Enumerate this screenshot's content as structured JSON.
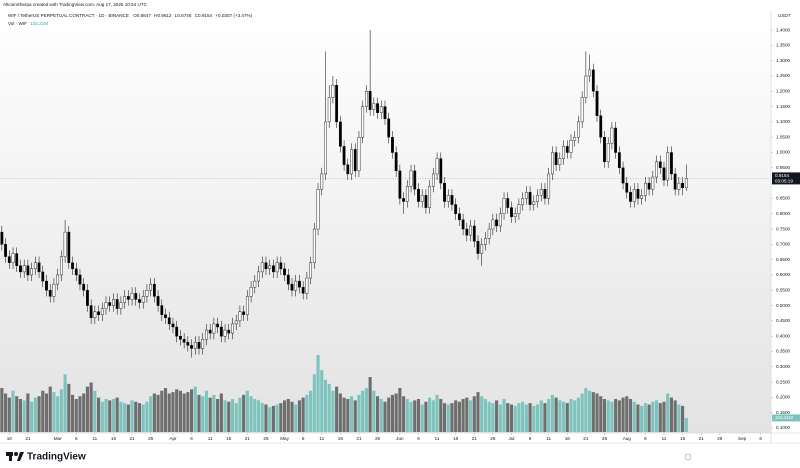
{
  "header": {
    "author_line": "AltcoinSherpa created with TradingView.com, Aug 17, 2025 10:54 UTC",
    "symbol": "WIF / TetherUS PERPETUAL CONTRACT · 1D · BINANCE",
    "ohlc_labels": [
      "O",
      "H",
      "L",
      "C"
    ],
    "change": "+0.0307 (+3.47%)",
    "volume_title": "Vol · WIF",
    "currency": "USDT",
    "countdown": "03:05:19",
    "brand": "TradingView"
  },
  "chart_data": {
    "type": "candlestick",
    "xlim": [
      -0.5,
      206.5
    ],
    "xticks": [
      {
        "value": 2,
        "label": "16"
      },
      {
        "value": 7,
        "label": "21"
      },
      {
        "value": 15,
        "label": "Mar"
      },
      {
        "value": 20,
        "label": "6"
      },
      {
        "value": 25,
        "label": "11"
      },
      {
        "value": 30,
        "label": "16"
      },
      {
        "value": 35,
        "label": "21"
      },
      {
        "value": 40,
        "label": "26"
      },
      {
        "value": 46,
        "label": "Apr"
      },
      {
        "value": 51,
        "label": "6"
      },
      {
        "value": 56,
        "label": "11"
      },
      {
        "value": 61,
        "label": "16"
      },
      {
        "value": 66,
        "label": "21"
      },
      {
        "value": 71,
        "label": "26"
      },
      {
        "value": 76,
        "label": "May"
      },
      {
        "value": 81,
        "label": "6"
      },
      {
        "value": 86,
        "label": "11"
      },
      {
        "value": 91,
        "label": "16"
      },
      {
        "value": 96,
        "label": "21"
      },
      {
        "value": 101,
        "label": "26"
      },
      {
        "value": 107,
        "label": "Jun"
      },
      {
        "value": 112,
        "label": "6"
      },
      {
        "value": 117,
        "label": "11"
      },
      {
        "value": 122,
        "label": "16"
      },
      {
        "value": 127,
        "label": "21"
      },
      {
        "value": 132,
        "label": "26"
      },
      {
        "value": 137,
        "label": "Jul"
      },
      {
        "value": 142,
        "label": "6"
      },
      {
        "value": 147,
        "label": "11"
      },
      {
        "value": 152,
        "label": "16"
      },
      {
        "value": 157,
        "label": "21"
      },
      {
        "value": 162,
        "label": "26"
      },
      {
        "value": 168,
        "label": "Aug"
      },
      {
        "value": 173,
        "label": "6"
      },
      {
        "value": 178,
        "label": "11"
      },
      {
        "value": 183,
        "label": "16"
      },
      {
        "value": 188,
        "label": "21"
      },
      {
        "value": 193,
        "label": "26"
      },
      {
        "value": 199,
        "label": "Sep"
      },
      {
        "value": 204,
        "label": "6"
      }
    ],
    "ylim": [
      0.087,
      1.459
    ],
    "yticks": [
      {
        "value": 1.4,
        "label": "1.4000"
      },
      {
        "value": 1.35,
        "label": "1.3500"
      },
      {
        "value": 1.3,
        "label": "1.3000"
      },
      {
        "value": 1.25,
        "label": "1.2500"
      },
      {
        "value": 1.2,
        "label": "1.2000"
      },
      {
        "value": 1.15,
        "label": "1.1500"
      },
      {
        "value": 1.1,
        "label": "1.1000"
      },
      {
        "value": 1.05,
        "label": "1.0500"
      },
      {
        "value": 1.0,
        "label": "1.0000"
      },
      {
        "value": 0.95,
        "label": "0.9500"
      },
      {
        "value": 0.85,
        "label": "0.8500"
      },
      {
        "value": 0.8,
        "label": "0.8000"
      },
      {
        "value": 0.75,
        "label": "0.7500"
      },
      {
        "value": 0.7,
        "label": "0.7000"
      },
      {
        "value": 0.65,
        "label": "0.6500"
      },
      {
        "value": 0.6,
        "label": "0.6000"
      },
      {
        "value": 0.55,
        "label": "0.5500"
      },
      {
        "value": 0.5,
        "label": "0.5000"
      },
      {
        "value": 0.45,
        "label": "0.4500"
      },
      {
        "value": 0.4,
        "label": "0.4000"
      },
      {
        "value": 0.35,
        "label": "0.3500"
      },
      {
        "value": 0.3,
        "label": "0.3000"
      },
      {
        "value": 0.25,
        "label": "0.2500"
      },
      {
        "value": 0.2,
        "label": "0.2000"
      },
      {
        "value": 0.15,
        "label": "0.1500"
      },
      {
        "value": 0.1,
        "label": "0.1000"
      }
    ],
    "grid": false,
    "up_color": "#ffffff",
    "down_color": "#000000",
    "outline_color": "#000000",
    "volume_up_color": "#7cc4bd",
    "volume_down_color": "#6e6e6e",
    "open": [
      0.74,
      0.7,
      0.66,
      0.64,
      0.67,
      0.63,
      0.61,
      0.63,
      0.6,
      0.62,
      0.64,
      0.61,
      0.58,
      0.55,
      0.53,
      0.57,
      0.6,
      0.66,
      0.74,
      0.64,
      0.62,
      0.6,
      0.57,
      0.55,
      0.5,
      0.46,
      0.48,
      0.47,
      0.49,
      0.51,
      0.5,
      0.52,
      0.49,
      0.51,
      0.53,
      0.52,
      0.54,
      0.52,
      0.51,
      0.53,
      0.55,
      0.57,
      0.53,
      0.5,
      0.47,
      0.46,
      0.44,
      0.43,
      0.4,
      0.39,
      0.38,
      0.37,
      0.36,
      0.38,
      0.36,
      0.39,
      0.42,
      0.41,
      0.44,
      0.43,
      0.4,
      0.42,
      0.41,
      0.44,
      0.45,
      0.48,
      0.47,
      0.53,
      0.56,
      0.58,
      0.61,
      0.64,
      0.62,
      0.63,
      0.61,
      0.64,
      0.62,
      0.6,
      0.57,
      0.55,
      0.58,
      0.56,
      0.54,
      0.59,
      0.64,
      0.75,
      0.88,
      0.93,
      1.1,
      1.18,
      1.22,
      1.1,
      1.02,
      0.96,
      0.93,
      1.01,
      0.94,
      1.05,
      1.15,
      1.2,
      1.14,
      1.16,
      1.13,
      1.15,
      1.11,
      1.05,
      1.0,
      0.94,
      0.85,
      0.84,
      0.89,
      0.94,
      0.88,
      0.84,
      0.86,
      0.82,
      0.89,
      0.93,
      0.98,
      0.9,
      0.84,
      0.86,
      0.83,
      0.8,
      0.78,
      0.75,
      0.73,
      0.76,
      0.71,
      0.67,
      0.7,
      0.72,
      0.75,
      0.78,
      0.76,
      0.8,
      0.85,
      0.82,
      0.79,
      0.8,
      0.83,
      0.85,
      0.87,
      0.83,
      0.84,
      0.86,
      0.88,
      0.85,
      0.93,
      1.0,
      0.96,
      0.98,
      1.02,
      1.0,
      1.04,
      1.05,
      1.1,
      1.18,
      1.25,
      1.27,
      1.2,
      1.12,
      1.05,
      0.97,
      1.03,
      1.08,
      1.0,
      0.95,
      0.9,
      0.87,
      0.84,
      0.88,
      0.85,
      0.86,
      0.9,
      0.88,
      0.92,
      0.97,
      0.95,
      0.91,
      1.0,
      0.93,
      0.88,
      0.9,
      0.8847
    ],
    "high": [
      0.76,
      0.72,
      0.68,
      0.69,
      0.69,
      0.65,
      0.65,
      0.65,
      0.64,
      0.66,
      0.66,
      0.63,
      0.6,
      0.57,
      0.59,
      0.62,
      0.68,
      0.78,
      0.76,
      0.66,
      0.64,
      0.62,
      0.59,
      0.57,
      0.52,
      0.5,
      0.5,
      0.51,
      0.53,
      0.53,
      0.54,
      0.54,
      0.53,
      0.55,
      0.55,
      0.56,
      0.56,
      0.54,
      0.55,
      0.57,
      0.59,
      0.59,
      0.55,
      0.52,
      0.49,
      0.48,
      0.46,
      0.45,
      0.42,
      0.41,
      0.4,
      0.39,
      0.4,
      0.4,
      0.41,
      0.44,
      0.44,
      0.46,
      0.46,
      0.45,
      0.44,
      0.44,
      0.46,
      0.47,
      0.5,
      0.5,
      0.55,
      0.58,
      0.6,
      0.63,
      0.66,
      0.66,
      0.65,
      0.65,
      0.66,
      0.66,
      0.64,
      0.62,
      0.59,
      0.6,
      0.6,
      0.58,
      0.61,
      0.66,
      0.77,
      0.9,
      0.95,
      1.33,
      1.22,
      1.25,
      1.24,
      1.12,
      1.04,
      0.98,
      1.03,
      1.03,
      1.07,
      1.17,
      1.22,
      1.4,
      1.18,
      1.18,
      1.17,
      1.17,
      1.13,
      1.07,
      1.02,
      0.96,
      0.87,
      0.91,
      0.96,
      0.96,
      0.9,
      0.88,
      0.88,
      0.91,
      0.95,
      1.0,
      1.0,
      0.92,
      0.88,
      0.88,
      0.85,
      0.82,
      0.8,
      0.77,
      0.78,
      0.78,
      0.73,
      0.72,
      0.74,
      0.77,
      0.8,
      0.8,
      0.82,
      0.87,
      0.87,
      0.84,
      0.82,
      0.85,
      0.87,
      0.89,
      0.89,
      0.86,
      0.88,
      0.9,
      0.9,
      0.95,
      1.02,
      1.02,
      1.0,
      1.04,
      1.04,
      1.06,
      1.07,
      1.12,
      1.2,
      1.33,
      1.32,
      1.29,
      1.22,
      1.14,
      1.07,
      1.05,
      1.1,
      1.1,
      1.02,
      0.97,
      0.92,
      0.89,
      0.9,
      0.9,
      0.88,
      0.92,
      0.92,
      0.94,
      0.99,
      0.99,
      0.97,
      1.02,
      1.02,
      0.95,
      0.92,
      0.92,
      0.9612
    ],
    "low": [
      0.68,
      0.64,
      0.62,
      0.62,
      0.61,
      0.59,
      0.59,
      0.58,
      0.58,
      0.6,
      0.59,
      0.56,
      0.53,
      0.51,
      0.51,
      0.55,
      0.58,
      0.64,
      0.62,
      0.6,
      0.58,
      0.55,
      0.53,
      0.48,
      0.44,
      0.44,
      0.45,
      0.45,
      0.47,
      0.48,
      0.48,
      0.47,
      0.47,
      0.49,
      0.5,
      0.5,
      0.5,
      0.49,
      0.49,
      0.51,
      0.53,
      0.51,
      0.48,
      0.45,
      0.44,
      0.42,
      0.41,
      0.38,
      0.37,
      0.36,
      0.35,
      0.33,
      0.34,
      0.34,
      0.34,
      0.37,
      0.39,
      0.39,
      0.41,
      0.38,
      0.38,
      0.39,
      0.39,
      0.42,
      0.43,
      0.45,
      0.45,
      0.51,
      0.54,
      0.56,
      0.59,
      0.6,
      0.6,
      0.59,
      0.59,
      0.6,
      0.58,
      0.55,
      0.53,
      0.53,
      0.54,
      0.52,
      0.52,
      0.57,
      0.62,
      0.73,
      0.86,
      0.91,
      1.08,
      1.16,
      1.08,
      1.0,
      0.94,
      0.91,
      0.91,
      0.92,
      0.92,
      1.03,
      1.13,
      1.12,
      1.12,
      1.11,
      1.11,
      1.09,
      1.03,
      0.98,
      0.92,
      0.83,
      0.8,
      0.82,
      0.87,
      0.86,
      0.82,
      0.82,
      0.8,
      0.8,
      0.87,
      0.91,
      0.88,
      0.82,
      0.82,
      0.81,
      0.78,
      0.76,
      0.73,
      0.71,
      0.71,
      0.69,
      0.65,
      0.63,
      0.68,
      0.7,
      0.73,
      0.74,
      0.74,
      0.78,
      0.8,
      0.77,
      0.77,
      0.78,
      0.81,
      0.83,
      0.81,
      0.81,
      0.82,
      0.84,
      0.83,
      0.83,
      0.91,
      0.94,
      0.94,
      0.96,
      0.98,
      0.98,
      1.02,
      1.03,
      1.08,
      1.16,
      1.23,
      1.18,
      1.1,
      1.03,
      0.95,
      0.95,
      1.01,
      0.98,
      0.93,
      0.88,
      0.85,
      0.82,
      0.82,
      0.83,
      0.83,
      0.84,
      0.86,
      0.86,
      0.9,
      0.93,
      0.89,
      0.89,
      0.91,
      0.86,
      0.86,
      0.86,
      0.8746
    ],
    "close": [
      0.7,
      0.66,
      0.64,
      0.67,
      0.63,
      0.61,
      0.63,
      0.6,
      0.62,
      0.64,
      0.61,
      0.58,
      0.55,
      0.53,
      0.57,
      0.6,
      0.66,
      0.74,
      0.64,
      0.62,
      0.6,
      0.57,
      0.55,
      0.5,
      0.46,
      0.48,
      0.47,
      0.49,
      0.51,
      0.5,
      0.52,
      0.49,
      0.51,
      0.53,
      0.52,
      0.54,
      0.52,
      0.51,
      0.53,
      0.55,
      0.57,
      0.53,
      0.5,
      0.47,
      0.46,
      0.44,
      0.43,
      0.4,
      0.39,
      0.38,
      0.37,
      0.36,
      0.38,
      0.36,
      0.39,
      0.42,
      0.41,
      0.44,
      0.43,
      0.4,
      0.42,
      0.41,
      0.44,
      0.45,
      0.48,
      0.47,
      0.53,
      0.56,
      0.58,
      0.61,
      0.64,
      0.62,
      0.63,
      0.61,
      0.64,
      0.62,
      0.6,
      0.57,
      0.55,
      0.58,
      0.56,
      0.54,
      0.59,
      0.64,
      0.75,
      0.88,
      0.93,
      1.1,
      1.18,
      1.22,
      1.1,
      1.02,
      0.96,
      0.93,
      1.01,
      0.94,
      1.05,
      1.15,
      1.2,
      1.14,
      1.16,
      1.13,
      1.15,
      1.11,
      1.05,
      1.0,
      0.94,
      0.85,
      0.84,
      0.89,
      0.94,
      0.88,
      0.84,
      0.86,
      0.82,
      0.89,
      0.93,
      0.98,
      0.9,
      0.84,
      0.86,
      0.83,
      0.8,
      0.78,
      0.75,
      0.73,
      0.76,
      0.71,
      0.67,
      0.7,
      0.72,
      0.75,
      0.78,
      0.76,
      0.8,
      0.85,
      0.82,
      0.79,
      0.8,
      0.83,
      0.85,
      0.87,
      0.83,
      0.84,
      0.86,
      0.88,
      0.85,
      0.93,
      1.0,
      0.96,
      0.98,
      1.02,
      1.0,
      1.04,
      1.05,
      1.1,
      1.18,
      1.25,
      1.27,
      1.2,
      1.12,
      1.05,
      0.97,
      1.03,
      1.08,
      1.0,
      0.95,
      0.9,
      0.87,
      0.84,
      0.88,
      0.85,
      0.86,
      0.9,
      0.88,
      0.92,
      0.97,
      0.95,
      0.91,
      1.0,
      0.93,
      0.88,
      0.9,
      0.8847,
      0.9154
    ],
    "volume": {
      "ylim": [
        0,
        800
      ],
      "values": [
        320,
        280,
        250,
        300,
        260,
        240,
        230,
        280,
        220,
        250,
        260,
        300,
        280,
        330,
        290,
        260,
        310,
        420,
        350,
        270,
        240,
        260,
        280,
        330,
        360,
        300,
        250,
        220,
        240,
        230,
        240,
        250,
        220,
        210,
        200,
        230,
        220,
        210,
        200,
        220,
        260,
        280,
        270,
        300,
        320,
        280,
        290,
        310,
        300,
        280,
        290,
        310,
        330,
        270,
        260,
        300,
        250,
        270,
        240,
        280,
        230,
        220,
        240,
        210,
        250,
        270,
        300,
        260,
        240,
        230,
        210,
        200,
        180,
        190,
        200,
        210,
        230,
        240,
        220,
        200,
        230,
        250,
        270,
        300,
        420,
        560,
        450,
        380,
        350,
        300,
        330,
        280,
        250,
        240,
        260,
        230,
        270,
        300,
        320,
        400,
        300,
        260,
        240,
        220,
        250,
        270,
        280,
        320,
        260,
        240,
        220,
        230,
        240,
        200,
        220,
        250,
        230,
        270,
        240,
        210,
        200,
        210,
        230,
        220,
        240,
        250,
        230,
        260,
        290,
        260,
        240,
        220,
        210,
        230,
        200,
        240,
        210,
        200,
        190,
        210,
        220,
        200,
        210,
        190,
        200,
        230,
        210,
        240,
        270,
        250,
        230,
        220,
        210,
        240,
        230,
        250,
        280,
        320,
        300,
        290,
        280,
        260,
        240,
        230,
        220,
        240,
        230,
        250,
        260,
        240,
        220,
        200,
        190,
        210,
        200,
        220,
        230,
        210,
        220,
        280,
        250,
        230,
        200,
        190,
        102.21
      ],
      "last_label": "102.21M"
    }
  }
}
